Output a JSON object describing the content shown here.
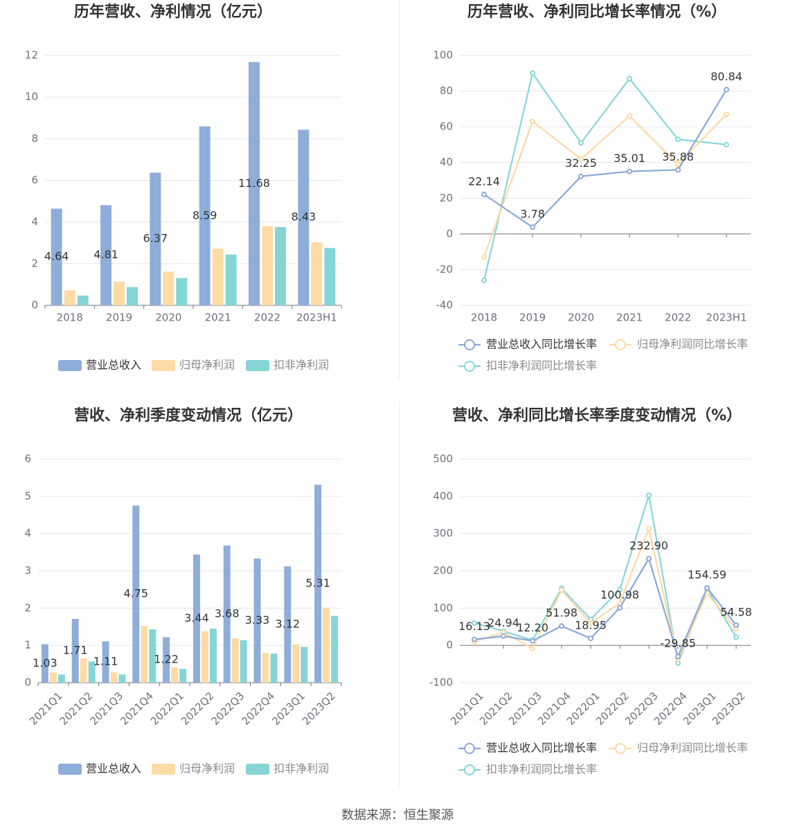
{
  "colors": {
    "revenue": "#8eadd8",
    "net_profit": "#fddba5",
    "deducted_profit": "#86d5d6",
    "revenue_line": "#8aa8d8",
    "net_line": "#fcd9a1",
    "deducted_line": "#86d6d8",
    "grid": "#e3e6f0",
    "axis_text": "#6e7079",
    "title": "#333333",
    "label": "#333333"
  },
  "source": "数据来源：恒生聚源",
  "chart_data": [
    {
      "id": "annual_amount",
      "type": "bar",
      "title": "历年营收、净利情况（亿元）",
      "categories": [
        "2018",
        "2019",
        "2020",
        "2021",
        "2022",
        "2023H1"
      ],
      "ylim": [
        0,
        12
      ],
      "yticks": [
        0,
        2,
        4,
        6,
        8,
        10,
        12
      ],
      "series": [
        {
          "name": "营业总收入",
          "values": [
            4.64,
            4.81,
            6.37,
            8.59,
            11.68,
            8.43
          ],
          "labeled": true
        },
        {
          "name": "归母净利润",
          "values": [
            0.72,
            1.14,
            1.62,
            2.72,
            3.8,
            3.02
          ],
          "labeled": false
        },
        {
          "name": "扣非净利润",
          "values": [
            0.47,
            0.88,
            1.31,
            2.44,
            3.76,
            2.75
          ],
          "labeled": false
        }
      ],
      "data_labels": [
        "4.64",
        "4.81",
        "6.37",
        "8.59",
        "11.68",
        "8.43"
      ]
    },
    {
      "id": "annual_growth",
      "type": "line",
      "title": "历年营收、净利同比增长率情况（%）",
      "categories": [
        "2018",
        "2019",
        "2020",
        "2021",
        "2022",
        "2023H1"
      ],
      "ylim": [
        -40,
        100
      ],
      "yticks": [
        -40,
        -20,
        0,
        20,
        40,
        60,
        80,
        100
      ],
      "series": [
        {
          "name": "营业总收入同比增长率",
          "values": [
            22.14,
            3.78,
            32.25,
            35.01,
            35.88,
            80.84
          ],
          "labeled": true
        },
        {
          "name": "归母净利润同比增长率",
          "values": [
            -13,
            63,
            42,
            66,
            39,
            67
          ],
          "labeled": false
        },
        {
          "name": "扣非净利润同比增长率",
          "values": [
            -26,
            90,
            51,
            87,
            53,
            50
          ],
          "labeled": false
        }
      ],
      "data_labels": [
        "22.14",
        "3.78",
        "32.25",
        "35.01",
        "35.88",
        "80.84"
      ]
    },
    {
      "id": "quarter_amount",
      "type": "bar",
      "title": "营收、净利季度变动情况（亿元）",
      "categories": [
        "2021Q1",
        "2021Q2",
        "2021Q3",
        "2021Q4",
        "2022Q1",
        "2022Q2",
        "2022Q3",
        "2022Q4",
        "2023Q1",
        "2023Q2"
      ],
      "ylim": [
        0,
        6
      ],
      "yticks": [
        0,
        1,
        2,
        3,
        4,
        5,
        6
      ],
      "series": [
        {
          "name": "营业总收入",
          "values": [
            1.03,
            1.71,
            1.11,
            4.75,
            1.22,
            3.44,
            3.68,
            3.33,
            3.12,
            5.31
          ],
          "labeled": true
        },
        {
          "name": "归母净利润",
          "values": [
            0.27,
            0.65,
            0.28,
            1.52,
            0.41,
            1.38,
            1.19,
            0.8,
            1.02,
            2.01
          ],
          "labeled": false
        },
        {
          "name": "扣非净利润",
          "values": [
            0.22,
            0.57,
            0.22,
            1.43,
            0.37,
            1.45,
            1.14,
            0.78,
            0.96,
            1.79
          ],
          "labeled": false
        }
      ],
      "data_labels": [
        "1.03",
        "1.71",
        "1.11",
        "4.75",
        "1.22",
        "3.44",
        "3.68",
        "3.33",
        "3.12",
        "5.31"
      ]
    },
    {
      "id": "quarter_growth",
      "type": "line",
      "title": "营收、净利同比增长率季度变动情况（%）",
      "categories": [
        "2021Q1",
        "2021Q2",
        "2021Q3",
        "2021Q4",
        "2022Q1",
        "2022Q2",
        "2022Q3",
        "2022Q4",
        "2023Q1",
        "2023Q2"
      ],
      "ylim": [
        -100,
        500
      ],
      "yticks": [
        -100,
        0,
        100,
        200,
        300,
        400,
        500
      ],
      "series": [
        {
          "name": "营业总收入同比增长率",
          "values": [
            16.13,
            24.94,
            12.2,
            51.98,
            18.95,
            100.98,
            232.9,
            -29.85,
            154.59,
            54.58
          ],
          "labeled": true
        },
        {
          "name": "归母净利润同比增长率",
          "values": [
            10,
            35,
            -8,
            148,
            60,
            113,
            313,
            -36,
            140,
            45
          ],
          "labeled": false
        },
        {
          "name": "扣非净利润同比增长率",
          "values": [
            60,
            38,
            14,
            153,
            70,
            150,
            403,
            -47,
            152,
            22
          ],
          "labeled": false
        }
      ],
      "data_labels": [
        "16.13",
        "24.94",
        "12.20",
        "51.98",
        "18.95",
        "100.98",
        "232.90",
        "-29.85",
        "154.59",
        "54.58"
      ]
    }
  ]
}
